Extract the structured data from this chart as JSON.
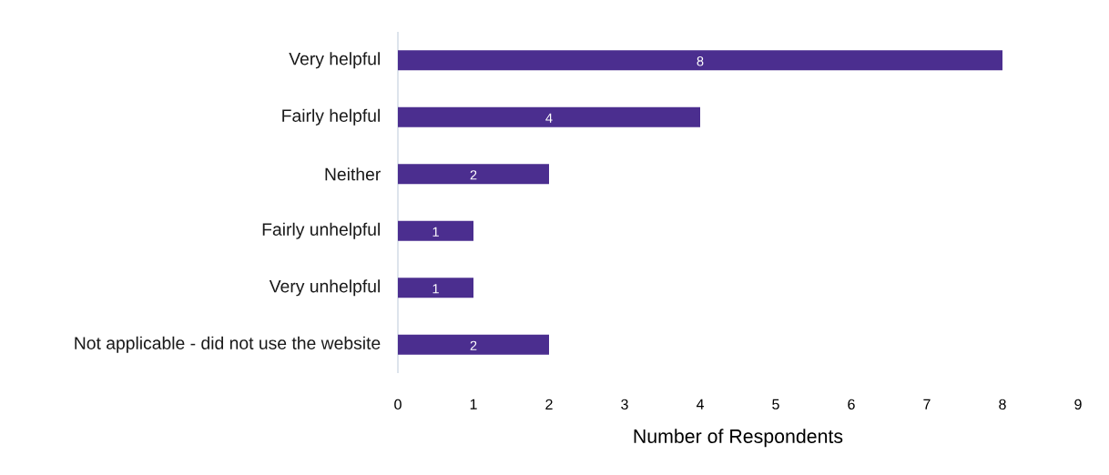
{
  "chart_data": {
    "type": "bar",
    "orientation": "horizontal",
    "categories": [
      "Very helpful",
      "Fairly helpful",
      "Neither",
      "Fairly unhelpful",
      "Very unhelpful",
      "Not applicable - did not use the website"
    ],
    "values": [
      8,
      4,
      2,
      1,
      1,
      2
    ],
    "color": "#4b2e8f",
    "xlim": [
      0,
      9
    ],
    "xticks": [
      0,
      1,
      2,
      3,
      4,
      5,
      6,
      7,
      8,
      9
    ],
    "xlabel": "Number of Respondents",
    "data_labels": true
  }
}
